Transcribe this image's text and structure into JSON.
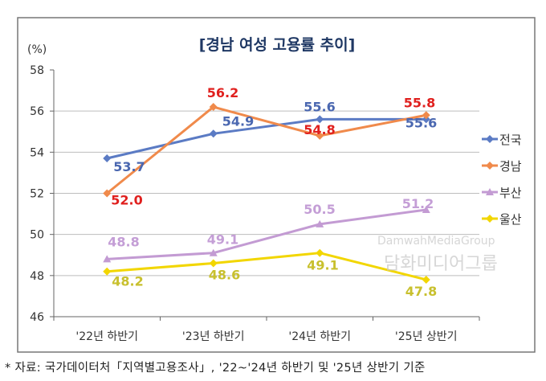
{
  "chart_data": {
    "type": "line",
    "title": "[경남 여성 고용률 추이]",
    "ylabel": "(%)",
    "xlabel": "",
    "categories": [
      "'22년 하반기",
      "'23년 하반기",
      "'24년 하반기",
      "'25년 상반기"
    ],
    "ylim": [
      46,
      58
    ],
    "yticks": [
      46,
      48,
      50,
      52,
      54,
      56,
      58
    ],
    "grid": true,
    "legend_position": "right",
    "series": [
      {
        "name": "전국",
        "values": [
          53.7,
          54.9,
          55.6,
          55.6
        ],
        "color": "#5b7bc4",
        "label_color": "#4a67b0",
        "marker": "diamond"
      },
      {
        "name": "경남",
        "values": [
          52.0,
          56.2,
          54.8,
          55.8
        ],
        "color": "#f08a4b",
        "label_color": "#e0201e",
        "marker": "diamond"
      },
      {
        "name": "부산",
        "values": [
          48.8,
          49.1,
          50.5,
          51.2
        ],
        "color": "#c39bd3",
        "label_color": "#c49ed6",
        "marker": "triangle"
      },
      {
        "name": "울산",
        "values": [
          48.2,
          48.6,
          49.1,
          47.8
        ],
        "color": "#f2d600",
        "label_color": "#c8c02e",
        "marker": "diamond"
      }
    ]
  },
  "footnote": "* 자료: 국가데이터처「지역별고용조사」, '22~'24년 하반기 및 '25년 상반기 기준",
  "watermark": {
    "line1": "DamwahMediaGroup",
    "line2": "담화미디어그룹"
  }
}
